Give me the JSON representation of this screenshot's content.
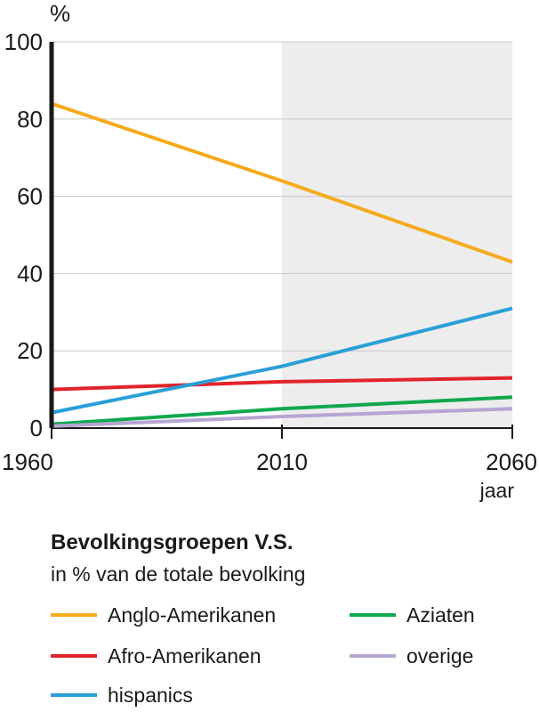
{
  "chart_data": {
    "type": "line",
    "y_unit_label": "%",
    "x_unit_label": "jaar",
    "x_ticks": [
      "1960",
      "2010",
      "2060"
    ],
    "y_ticks": [
      "0",
      "20",
      "40",
      "60",
      "80",
      "100"
    ],
    "xlim": [
      1960,
      2060
    ],
    "ylim": [
      0,
      100
    ],
    "projection_shaded_from": 2010,
    "title": "Bevolkingsgroepen V.S.",
    "subtitle": "in % van de totale bevolking",
    "series": [
      {
        "name": "Anglo-Amerikanen",
        "color": "#f5ab1d",
        "x": [
          1960,
          2010,
          2060
        ],
        "values": [
          84,
          64,
          43
        ]
      },
      {
        "name": "Afro-Amerikanen",
        "color": "#e2232a",
        "x": [
          1960,
          2010,
          2060
        ],
        "values": [
          10,
          12,
          13
        ]
      },
      {
        "name": "hispanics",
        "color": "#2a9fd8",
        "x": [
          1960,
          2010,
          2060
        ],
        "values": [
          4,
          16,
          31
        ]
      },
      {
        "name": "Aziaten",
        "color": "#10a84e",
        "x": [
          1960,
          2010,
          2060
        ],
        "values": [
          1,
          5,
          8
        ]
      },
      {
        "name": "overige",
        "color": "#b7a5d3",
        "x": [
          1960,
          2010,
          2060
        ],
        "values": [
          0.5,
          3,
          5
        ]
      }
    ]
  }
}
